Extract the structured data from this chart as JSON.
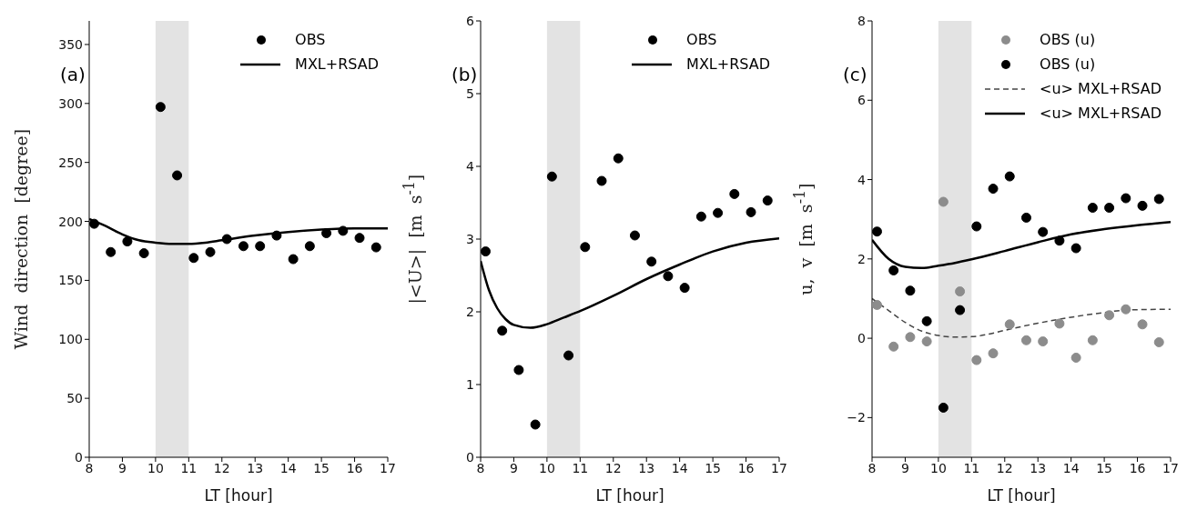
{
  "chart_data": [
    {
      "type": "scatter",
      "xlabel": "LT [hour]",
      "ylabel": "Wind  direction  [degree]",
      "xlim": [
        8,
        17
      ],
      "xticks": [
        8,
        9,
        10,
        11,
        12,
        13,
        14,
        15,
        16,
        17
      ],
      "ylim": [
        0,
        370
      ],
      "yticks": [
        0,
        50,
        100,
        150,
        200,
        250,
        300,
        350
      ],
      "grid": false,
      "legend": "top right",
      "annotations": [
        "(a)"
      ],
      "bands": [
        {
          "axis": "x",
          "from": 10,
          "to": 11,
          "color": "#e3e3e3"
        }
      ],
      "x": [
        8.15,
        8.65,
        9.15,
        9.65,
        10.15,
        10.65,
        11.15,
        11.65,
        12.15,
        12.65,
        13.15,
        13.65,
        14.15,
        14.65,
        15.15,
        15.65,
        16.15,
        16.65
      ],
      "series": [
        {
          "name": "OBS",
          "marker": "circle",
          "color": "#000000",
          "values": [
            198,
            174,
            183,
            173,
            297,
            239,
            169,
            174,
            185,
            179,
            179,
            188,
            168,
            179,
            190,
            192,
            186,
            178
          ]
        },
        {
          "name": "MXL+RSAD",
          "type": "line",
          "color": "#000000",
          "line_style": "solid",
          "x": [
            8,
            8.5,
            9,
            9.5,
            10,
            10.5,
            11,
            11.5,
            12,
            13,
            14,
            15,
            16,
            17
          ],
          "values": [
            202,
            196,
            189,
            184,
            182,
            181,
            181,
            182,
            184,
            188,
            191,
            193,
            194,
            194
          ]
        }
      ]
    },
    {
      "type": "scatter",
      "xlabel": "LT [hour]",
      "ylabel": "|<U>|  [m  s$^{-1}$]",
      "xlim": [
        8,
        17
      ],
      "xticks": [
        8,
        9,
        10,
        11,
        12,
        13,
        14,
        15,
        16,
        17
      ],
      "ylim": [
        0,
        6
      ],
      "yticks": [
        0,
        1,
        2,
        3,
        4,
        5,
        6
      ],
      "grid": false,
      "legend": "top right",
      "annotations": [
        "(b)"
      ],
      "bands": [
        {
          "axis": "x",
          "from": 10,
          "to": 11,
          "color": "#e3e3e3"
        }
      ],
      "x": [
        8.15,
        8.65,
        9.15,
        9.65,
        10.15,
        10.65,
        11.15,
        11.65,
        12.15,
        12.65,
        13.15,
        13.65,
        14.15,
        14.65,
        15.15,
        15.65,
        16.15,
        16.65
      ],
      "series": [
        {
          "name": "OBS",
          "marker": "circle",
          "color": "#000000",
          "values": [
            2.83,
            1.74,
            1.2,
            0.45,
            3.86,
            1.4,
            2.89,
            3.8,
            4.11,
            3.05,
            2.69,
            2.49,
            2.33,
            3.31,
            3.36,
            3.62,
            3.37,
            3.53
          ]
        },
        {
          "name": "MXL+RSAD",
          "type": "line",
          "color": "#000000",
          "line_style": "solid",
          "x": [
            8,
            8.25,
            8.5,
            8.75,
            9,
            9.5,
            10,
            10.5,
            11,
            12,
            13,
            14,
            15,
            16,
            17
          ],
          "values": [
            2.7,
            2.3,
            2.05,
            1.9,
            1.82,
            1.78,
            1.83,
            1.92,
            2.01,
            2.22,
            2.45,
            2.65,
            2.83,
            2.95,
            3.01
          ]
        }
      ]
    },
    {
      "type": "scatter",
      "xlabel": "LT [hour]",
      "ylabel": "u,  v  [m  s$^{-1}$]",
      "xlim": [
        8,
        17
      ],
      "xticks": [
        8,
        9,
        10,
        11,
        12,
        13,
        14,
        15,
        16,
        17
      ],
      "ylim": [
        -3,
        8
      ],
      "yticks": [
        -2,
        0,
        2,
        4,
        6,
        8
      ],
      "grid": false,
      "legend": "top right",
      "annotations": [
        "(c)"
      ],
      "bands": [
        {
          "axis": "x",
          "from": 10,
          "to": 11,
          "color": "#e3e3e3"
        }
      ],
      "x": [
        8.15,
        8.65,
        9.15,
        9.65,
        10.15,
        10.65,
        11.15,
        11.65,
        12.15,
        12.65,
        13.15,
        13.65,
        14.15,
        14.65,
        15.15,
        15.65,
        16.15,
        16.65
      ],
      "series": [
        {
          "name": "OBS (u)",
          "marker": "circle",
          "color": "#8c8c8c",
          "values": [
            0.84,
            -0.21,
            0.03,
            -0.08,
            3.44,
            1.18,
            -0.55,
            -0.38,
            0.35,
            -0.05,
            -0.08,
            0.37,
            -0.49,
            -0.05,
            0.58,
            0.73,
            0.35,
            -0.1
          ]
        },
        {
          "name": "OBS (u)",
          "marker": "circle",
          "color": "#000000",
          "values": [
            2.69,
            1.71,
            1.2,
            0.43,
            -1.75,
            0.71,
            2.82,
            3.77,
            4.08,
            3.04,
            2.68,
            2.46,
            2.27,
            3.29,
            3.29,
            3.53,
            3.34,
            3.51
          ]
        },
        {
          "name": "<u> MXL+RSAD",
          "type": "line",
          "color": "#444444",
          "line_style": "dashed",
          "x": [
            8,
            8.5,
            9,
            9.5,
            10,
            10.5,
            11,
            11.5,
            12,
            13,
            14,
            15,
            15.5,
            16,
            17
          ],
          "values": [
            1.0,
            0.7,
            0.4,
            0.18,
            0.07,
            0.03,
            0.04,
            0.1,
            0.2,
            0.38,
            0.53,
            0.65,
            0.7,
            0.72,
            0.73
          ]
        },
        {
          "name": "<u> MXL+RSAD",
          "type": "line",
          "color": "#000000",
          "line_style": "solid",
          "x": [
            8,
            8.5,
            9,
            9.5,
            10,
            10.5,
            11,
            12,
            13,
            14,
            15,
            16,
            17
          ],
          "values": [
            2.48,
            2.0,
            1.8,
            1.77,
            1.83,
            1.9,
            1.99,
            2.2,
            2.42,
            2.62,
            2.75,
            2.85,
            2.93
          ]
        }
      ]
    }
  ]
}
